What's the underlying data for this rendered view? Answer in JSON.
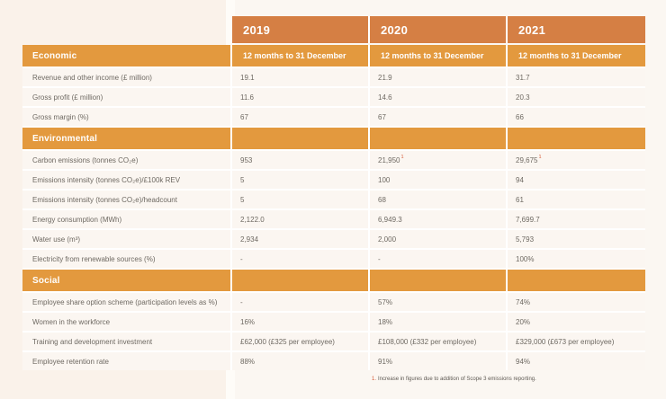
{
  "colors": {
    "year_header_bg": "#d57f44",
    "section_header_bg": "#e3993e",
    "row_bg": "#fbf6f1",
    "separator": "#ffffff",
    "text": "#6e6962",
    "footnote_marker": "#d65c38",
    "page_left_bg": "#faf2ea",
    "page_right_bg": "#fbf7f2"
  },
  "table": {
    "columns": [
      {
        "year": "2019",
        "period": "12 months to 31 December"
      },
      {
        "year": "2020",
        "period": "12 months to 31 December"
      },
      {
        "year": "2021",
        "period": "12 months to 31 December"
      }
    ],
    "sections": [
      {
        "title": "Economic",
        "rows": [
          {
            "label": "Revenue and other income (£ million)",
            "values": [
              "19.1",
              "21.9",
              "31.7"
            ]
          },
          {
            "label": "Gross profit (£ million)",
            "values": [
              "11.6",
              "14.6",
              "20.3"
            ]
          },
          {
            "label": "Gross margin (%)",
            "values": [
              "67",
              "67",
              "66"
            ]
          }
        ]
      },
      {
        "title": "Environmental",
        "rows": [
          {
            "label": "Carbon emissions (tonnes CO₂e)",
            "values": [
              "953",
              "21,950",
              "29,675"
            ],
            "sups": [
              "",
              "1",
              "1"
            ]
          },
          {
            "label": "Emissions intensity (tonnes CO₂e)/£100k REV",
            "values": [
              "5",
              "100",
              "94"
            ]
          },
          {
            "label": "Emissions intensity (tonnes CO₂e)/headcount",
            "values": [
              "5",
              "68",
              "61"
            ]
          },
          {
            "label": "Energy consumption (MWh)",
            "values": [
              "2,122.0",
              "6,949.3",
              "7,699.7"
            ]
          },
          {
            "label": "Water use (m³)",
            "values": [
              "2,934",
              "2,000",
              "5,793"
            ]
          },
          {
            "label": "Electricity from renewable sources (%)",
            "values": [
              "-",
              "-",
              "100%"
            ]
          }
        ]
      },
      {
        "title": "Social",
        "rows": [
          {
            "label": "Employee share option scheme (participation levels as %)",
            "values": [
              "-",
              "57%",
              "74%"
            ]
          },
          {
            "label": "Women in the workforce",
            "values": [
              "16%",
              "18%",
              "20%"
            ]
          },
          {
            "label": "Training and development investment",
            "values": [
              "£62,000 (£325 per employee)",
              "£108,000 (£332 per employee)",
              "£329,000 (£673 per employee)"
            ]
          },
          {
            "label": "Employee retention rate",
            "values": [
              "88%",
              "91%",
              "94%"
            ]
          }
        ]
      }
    ]
  },
  "footnote": {
    "marker": "1.",
    "text": "Increase in figures due to addition of Scope 3 emissions reporting."
  }
}
